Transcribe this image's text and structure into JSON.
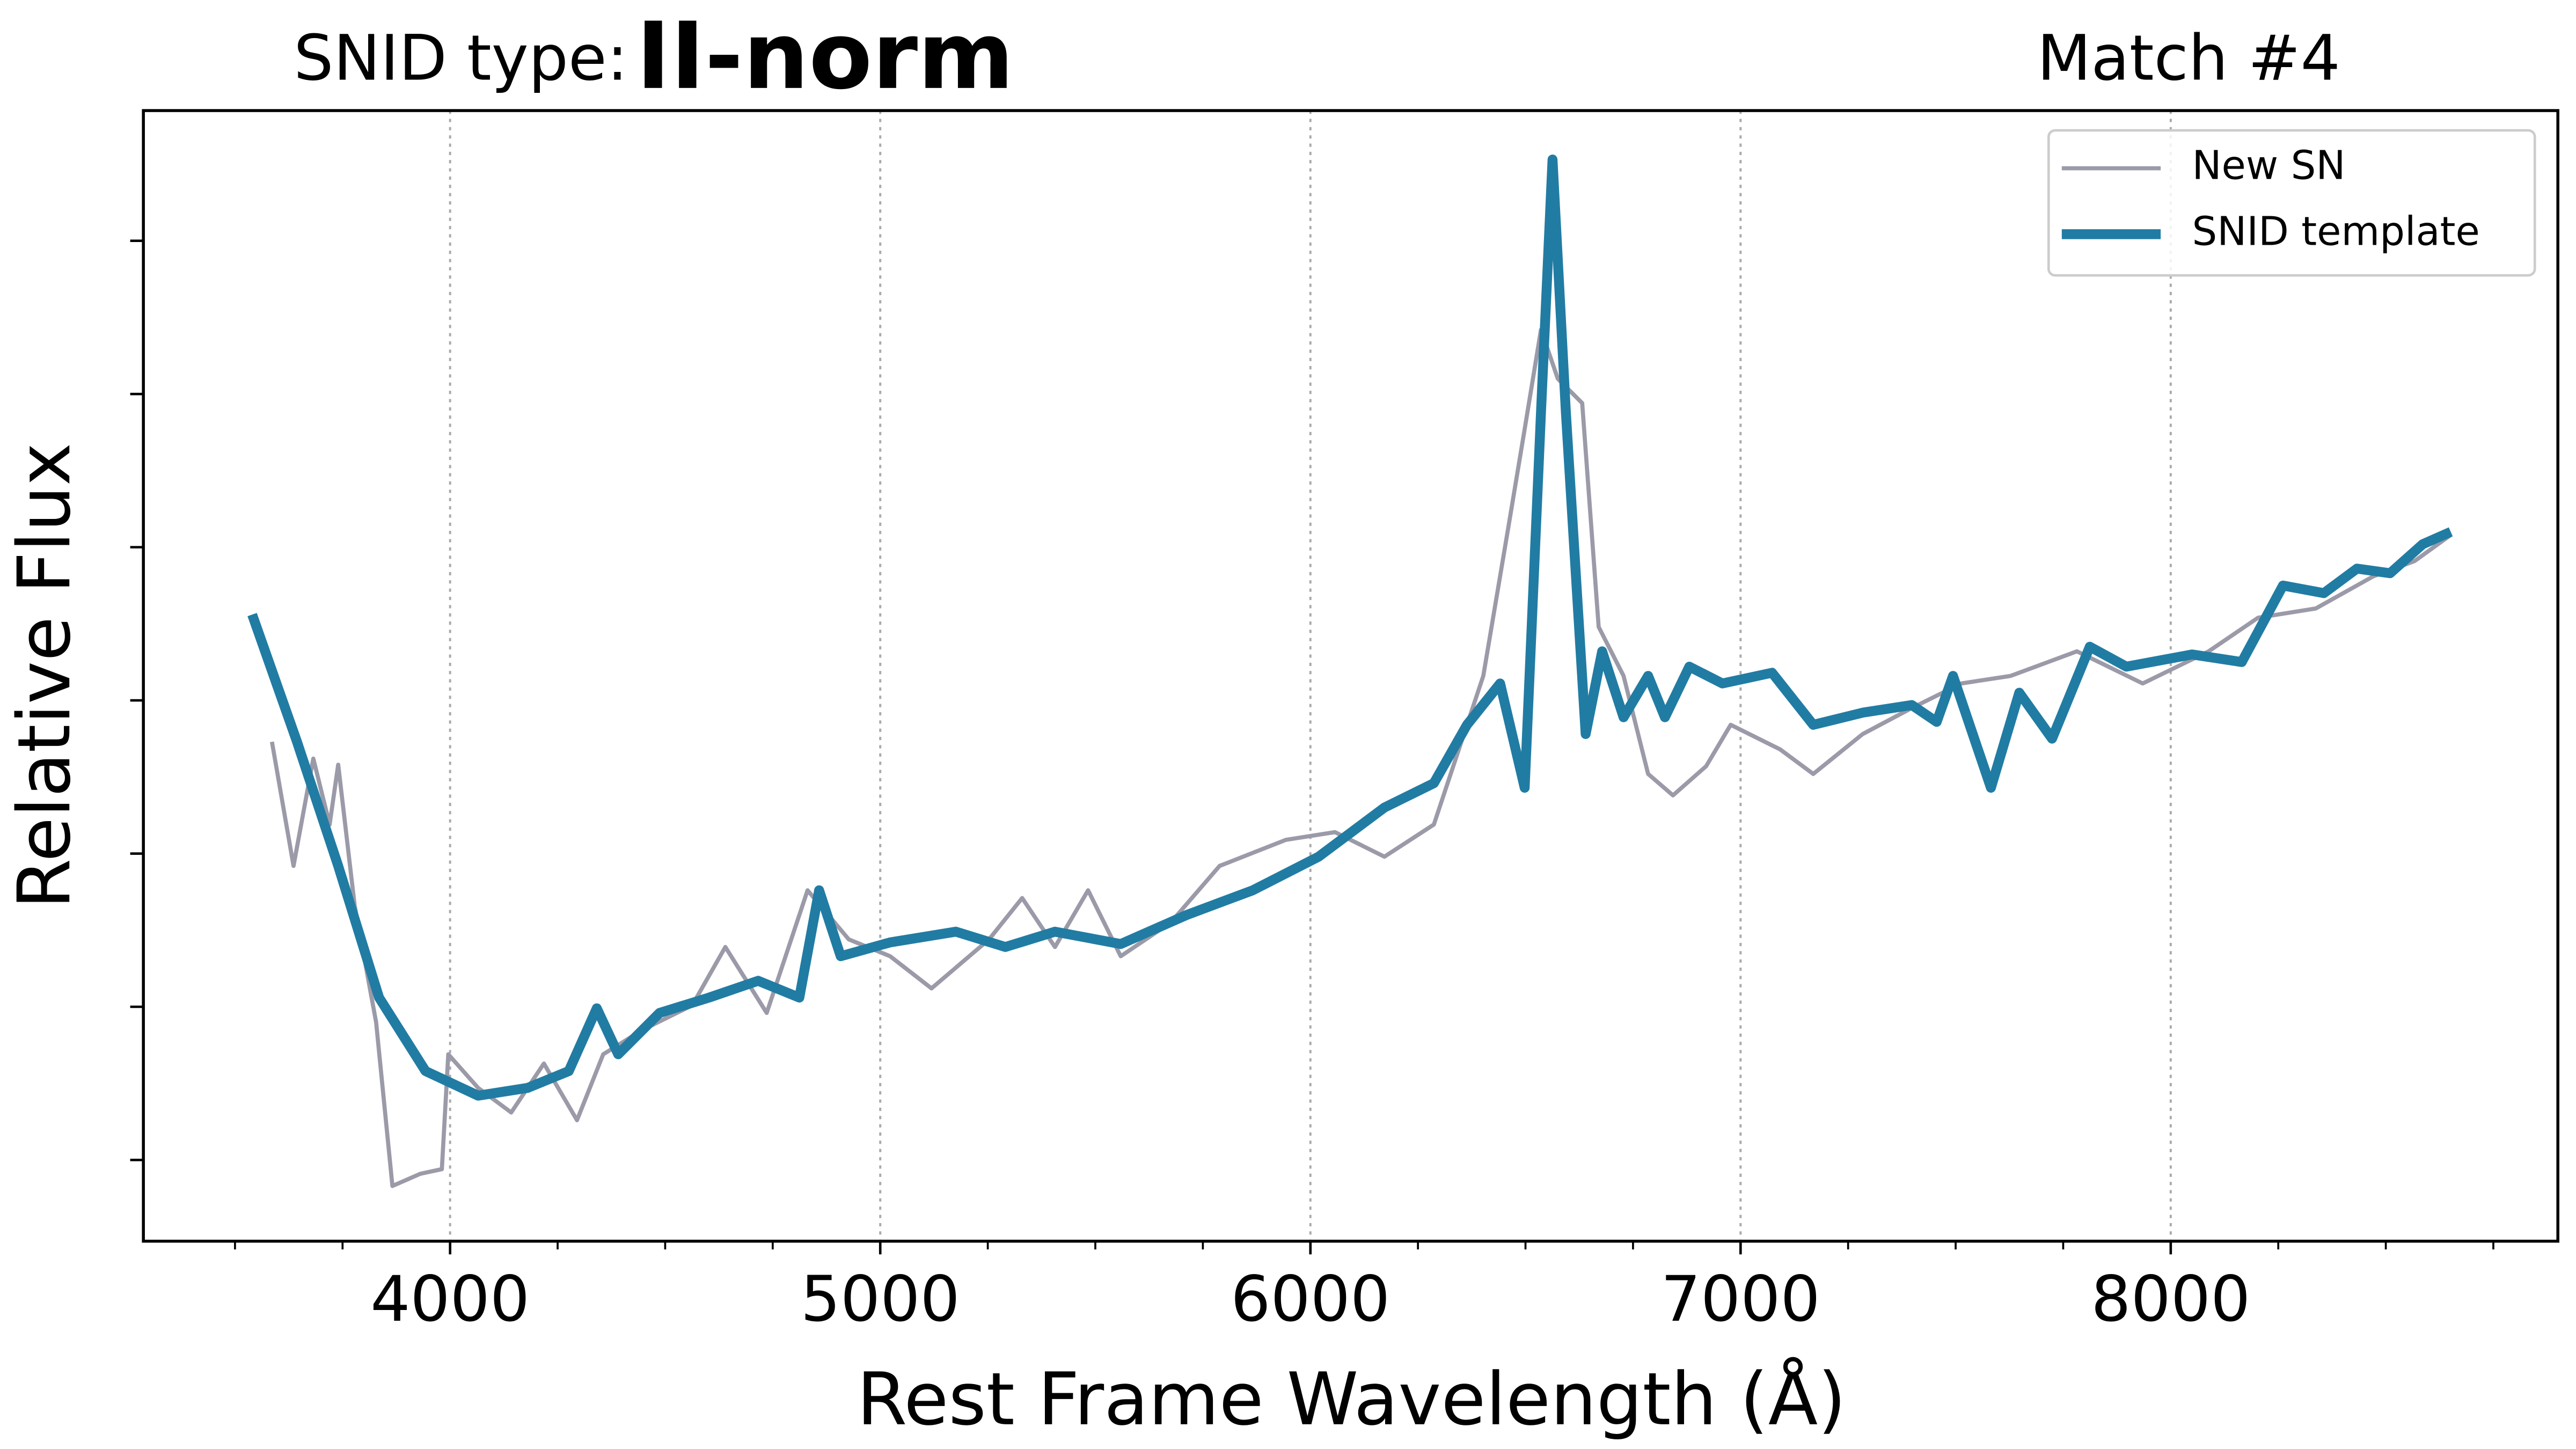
{
  "chart_data": {
    "type": "line",
    "title_prefix": "SNID type:",
    "title": "II-norm",
    "title_color": "#217ca3",
    "subtitle": "Match #4",
    "xlabel": "Rest Frame Wavelength (Å)",
    "ylabel": "Relative Flux",
    "xlim": [
      3287,
      8900
    ],
    "ylim": [
      0.47,
      7.85
    ],
    "xticks": [
      4000,
      5000,
      6000,
      7000,
      8000
    ],
    "xminorticks": [
      3500,
      3750,
      4250,
      4500,
      4750,
      5250,
      5500,
      5750,
      6250,
      6500,
      6750,
      7250,
      7500,
      7750,
      8250,
      8500,
      8750
    ],
    "yticks": [
      1,
      2,
      3,
      4,
      5,
      6,
      7
    ],
    "ytick_labels": false,
    "grid": "x",
    "legend": "upper right",
    "series": [
      {
        "name": "New SN",
        "color": "#9b9aa8",
        "width": 2.5,
        "x": [
          3586,
          3636,
          3682,
          3720,
          3740,
          3778,
          3828,
          3866,
          3931,
          3981,
          3996,
          4065,
          4142,
          4218,
          4295,
          4356,
          4448,
          4563,
          4640,
          4736,
          4831,
          4927,
          5023,
          5119,
          5253,
          5330,
          5406,
          5483,
          5559,
          5675,
          5789,
          5943,
          6057,
          6172,
          6287,
          6402,
          6460,
          6498,
          6536,
          6575,
          6632,
          6670,
          6728,
          6785,
          6843,
          6920,
          6977,
          7092,
          7169,
          7284,
          7398,
          7513,
          7628,
          7782,
          7935,
          8088,
          8203,
          8337,
          8471,
          8567,
          8651
        ],
        "values": [
          3.73,
          2.92,
          3.62,
          3.19,
          3.58,
          2.66,
          1.9,
          0.83,
          0.91,
          0.94,
          1.69,
          1.47,
          1.31,
          1.63,
          1.26,
          1.69,
          1.85,
          2.01,
          2.39,
          1.96,
          2.76,
          2.44,
          2.33,
          2.12,
          2.44,
          2.71,
          2.39,
          2.76,
          2.33,
          2.55,
          2.92,
          3.09,
          3.14,
          2.98,
          3.19,
          4.16,
          5.13,
          5.77,
          6.42,
          6.1,
          5.94,
          4.48,
          4.16,
          3.52,
          3.38,
          3.57,
          3.84,
          3.68,
          3.52,
          3.78,
          3.95,
          4.11,
          4.16,
          4.32,
          4.11,
          4.32,
          4.54,
          4.6,
          4.81,
          4.91,
          5.08
        ]
      },
      {
        "name": "SNID template",
        "color": "#217ca3",
        "width": 6,
        "x": [
          3540,
          3644,
          3740,
          3835,
          3943,
          4065,
          4180,
          4276,
          4341,
          4391,
          4487,
          4602,
          4716,
          4812,
          4858,
          4908,
          5023,
          5176,
          5291,
          5406,
          5559,
          5713,
          5866,
          6019,
          6172,
          6287,
          6364,
          6441,
          6498,
          6536,
          6563,
          6594,
          6640,
          6678,
          6728,
          6785,
          6824,
          6881,
          6958,
          7073,
          7169,
          7284,
          7398,
          7456,
          7494,
          7582,
          7648,
          7724,
          7812,
          7897,
          8050,
          8165,
          8261,
          8356,
          8433,
          8510,
          8586,
          8651
        ],
        "values": [
          4.56,
          3.73,
          2.92,
          2.06,
          1.58,
          1.42,
          1.47,
          1.58,
          1.99,
          1.69,
          1.96,
          2.06,
          2.17,
          2.06,
          2.76,
          2.33,
          2.42,
          2.49,
          2.39,
          2.49,
          2.41,
          2.6,
          2.76,
          2.98,
          3.3,
          3.46,
          3.84,
          4.11,
          3.43,
          5.88,
          7.53,
          5.88,
          3.78,
          4.32,
          3.89,
          4.16,
          3.89,
          4.22,
          4.11,
          4.18,
          3.84,
          3.92,
          3.97,
          3.86,
          4.16,
          3.43,
          4.05,
          3.75,
          4.35,
          4.22,
          4.3,
          4.25,
          4.75,
          4.7,
          4.86,
          4.83,
          5.02,
          5.1
        ]
      }
    ]
  }
}
